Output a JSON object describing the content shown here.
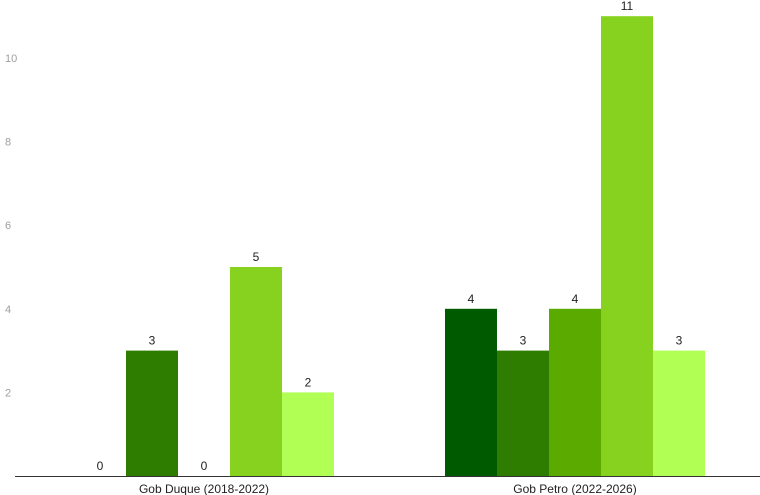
{
  "chart_data": {
    "type": "bar",
    "title": "",
    "xlabel": "",
    "ylabel": "",
    "categories": [
      "Gob Duque (2018-2022)",
      "Gob Petro (2022-2026)"
    ],
    "series": [
      {
        "values": [
          0,
          4
        ],
        "color": "#005a00"
      },
      {
        "values": [
          3,
          3
        ],
        "color": "#2e7d00"
      },
      {
        "values": [
          0,
          4
        ],
        "color": "#5aaa00"
      },
      {
        "values": [
          5,
          11
        ],
        "color": "#86d21e"
      },
      {
        "values": [
          2,
          3
        ],
        "color": "#b1ff55"
      }
    ],
    "yticks": [
      "2",
      "4",
      "6",
      "8",
      "10"
    ],
    "ylim": [
      0,
      11
    ],
    "grid": false,
    "legend": "none"
  }
}
